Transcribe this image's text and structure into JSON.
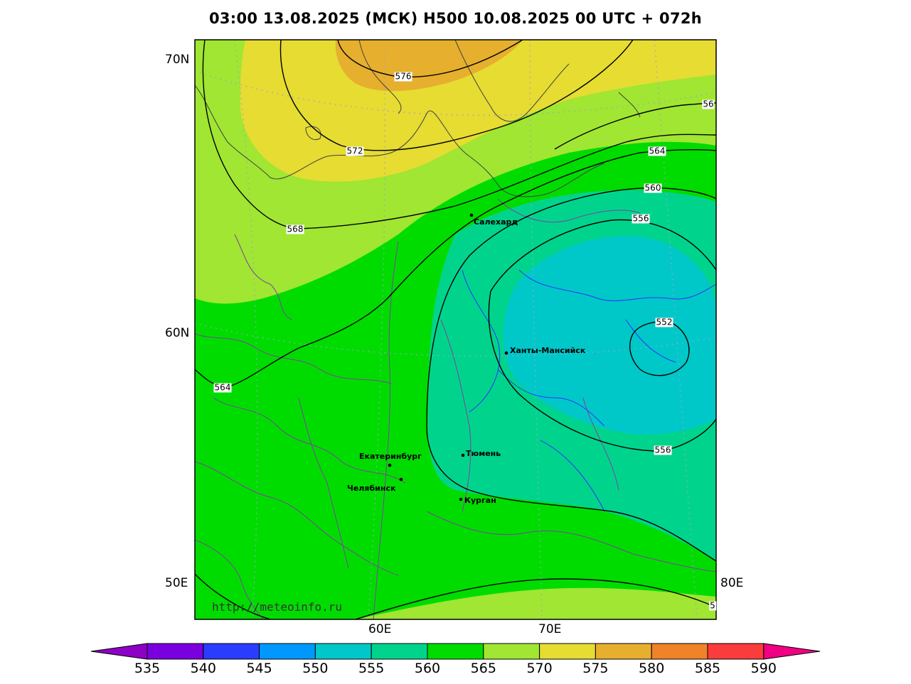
{
  "title": "03:00 13.08.2025 (МСК) H500  10.08.2025 00 UTC + 072h",
  "axis_labels": {
    "lat_70": "70N",
    "lat_60": "60N",
    "lon_50": "50E",
    "lon_80": "80E",
    "lon_60": "60E",
    "lon_70": "70E"
  },
  "isolines": {
    "l576": "576",
    "l572": "572",
    "l568": "568",
    "l56x": "56",
    "l564a": "564",
    "l564b": "564",
    "l560": "560",
    "l556a": "556",
    "l556b": "556",
    "l552": "552",
    "l5x": "5"
  },
  "cities": {
    "salekhard": "Салехард",
    "khanty": "Ханты-Мансийск",
    "ekb": "Екатеринбург",
    "tyumen": "Тюмень",
    "chelyabinsk": "Челябинск",
    "kurgan": "Курган"
  },
  "watermark": "http://meteoinfo.ru",
  "colorbar": {
    "ticks": [
      "535",
      "540",
      "545",
      "550",
      "555",
      "560",
      "565",
      "570",
      "575",
      "580",
      "585",
      "590"
    ],
    "colors": [
      "#8e00c6",
      "#7a00e0",
      "#2a3cff",
      "#0098ff",
      "#00c8c8",
      "#00d48c",
      "#00dc00",
      "#a0e632",
      "#e6dc32",
      "#e6af2d",
      "#f08228",
      "#fa3c3c",
      "#f00082"
    ]
  },
  "colors": {
    "frame": "#000000",
    "contour": "#000000",
    "border": "#8040a0",
    "river": "#3030ff"
  }
}
